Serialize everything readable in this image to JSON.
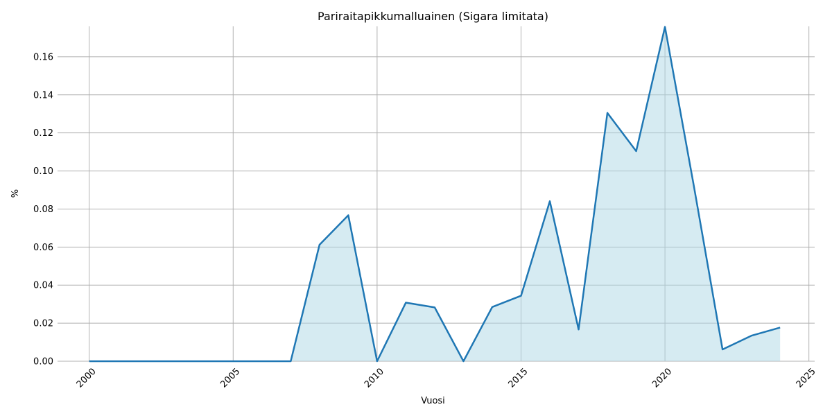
{
  "chart_data": {
    "type": "area",
    "title": "Pariraitapikkumalluainen (Sigara limitata)",
    "xlabel": "Vuosi",
    "ylabel": "%",
    "xlim": [
      1998.9,
      2025.2
    ],
    "ylim": [
      0,
      0.176
    ],
    "xticks": [
      2000,
      2005,
      2010,
      2015,
      2020,
      2025
    ],
    "yticks": [
      0.0,
      0.02,
      0.04,
      0.06,
      0.08,
      0.1,
      0.12,
      0.14,
      0.16
    ],
    "ytick_labels": [
      "0.00",
      "0.02",
      "0.04",
      "0.06",
      "0.08",
      "0.10",
      "0.12",
      "0.14",
      "0.16"
    ],
    "grid": true,
    "x": [
      2000,
      2001,
      2002,
      2003,
      2004,
      2005,
      2006,
      2007,
      2008,
      2009,
      2010,
      2011,
      2012,
      2013,
      2014,
      2015,
      2016,
      2017,
      2018,
      2019,
      2020,
      2021,
      2022,
      2023,
      2024
    ],
    "y": [
      0,
      0,
      0,
      0,
      0,
      0,
      0,
      0,
      0.0612,
      0.0767,
      0,
      0.0308,
      0.0283,
      0,
      0.0285,
      0.0344,
      0.0841,
      0.0167,
      0.1305,
      0.1104,
      0.1757,
      0.0924,
      0.0062,
      0.0134,
      0.0177
    ],
    "colors": {
      "line": "#1f77b4",
      "fill": "#add8e6",
      "grid": "#b0b0b0"
    }
  }
}
